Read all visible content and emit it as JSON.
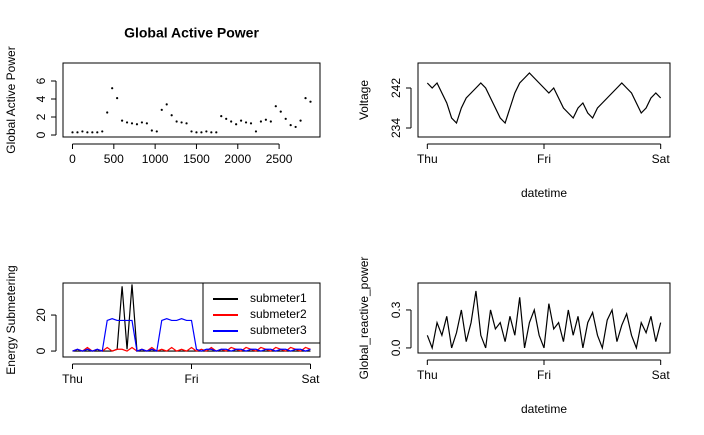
{
  "chart_data": [
    {
      "type": "scatter",
      "title": "Global Active Power",
      "y_label": "Global Active Power",
      "color": "#000000",
      "x": [
        0,
        60,
        120,
        180,
        240,
        300,
        360,
        420,
        480,
        540,
        600,
        660,
        720,
        780,
        840,
        900,
        960,
        1020,
        1080,
        1140,
        1200,
        1260,
        1320,
        1380,
        1440,
        1500,
        1560,
        1620,
        1680,
        1740,
        1800,
        1860,
        1920,
        1980,
        2040,
        2100,
        2160,
        2220,
        2280,
        2340,
        2400,
        2460,
        2520,
        2580,
        2640,
        2700,
        2760,
        2820,
        2880
      ],
      "values": [
        0.3,
        0.3,
        0.4,
        0.3,
        0.3,
        0.3,
        0.4,
        2.5,
        5.2,
        4.1,
        1.6,
        1.4,
        1.3,
        1.2,
        1.4,
        1.3,
        0.5,
        0.4,
        2.8,
        3.4,
        2.2,
        1.5,
        1.4,
        1.3,
        0.4,
        0.3,
        0.3,
        0.4,
        0.3,
        0.3,
        2.1,
        1.8,
        1.5,
        1.2,
        1.6,
        1.4,
        1.3,
        0.4,
        1.5,
        1.7,
        1.5,
        3.2,
        2.6,
        1.8,
        1.1,
        0.9,
        1.6,
        4.1,
        3.7
      ],
      "xlim": [
        -115,
        2995
      ],
      "xticks": [
        0,
        500,
        1000,
        1500,
        2000,
        2500
      ],
      "ylim": [
        -0.22,
        8
      ],
      "yticks": [
        0,
        2,
        4,
        6
      ]
    },
    {
      "type": "line",
      "x_label": "datetime",
      "y_label": "Voltage",
      "color": "#000000",
      "x": [
        0,
        60,
        120,
        180,
        240,
        300,
        360,
        420,
        480,
        540,
        600,
        660,
        720,
        780,
        840,
        900,
        960,
        1020,
        1080,
        1140,
        1200,
        1260,
        1320,
        1380,
        1440,
        1500,
        1560,
        1620,
        1680,
        1740,
        1800,
        1860,
        1920,
        1980,
        2040,
        2100,
        2160,
        2220,
        2280,
        2340,
        2400,
        2460,
        2520,
        2580,
        2640,
        2700,
        2760,
        2820,
        2880
      ],
      "values": [
        243,
        242,
        243,
        241,
        239,
        236,
        235,
        238,
        240,
        241,
        242,
        243,
        242,
        240,
        238,
        236,
        235,
        238,
        241,
        243,
        244,
        245,
        244,
        243,
        242,
        241,
        242,
        240,
        238,
        237,
        236,
        238,
        239,
        237,
        236,
        238,
        239,
        240,
        241,
        242,
        243,
        242,
        241,
        239,
        237,
        238,
        240,
        241,
        240
      ],
      "xlim": [
        -115,
        2995
      ],
      "xticks": [
        {
          "value": 0,
          "label": "Thu"
        },
        {
          "value": 1440,
          "label": "Fri"
        },
        {
          "value": 2880,
          "label": "Sat"
        }
      ],
      "ylim": [
        232.2,
        247
      ],
      "yticks": [
        234,
        242
      ]
    },
    {
      "type": "line",
      "y_label": "Energy Submetering",
      "legend": "top-right",
      "x": [
        0,
        60,
        120,
        180,
        240,
        300,
        360,
        420,
        480,
        540,
        600,
        660,
        720,
        780,
        840,
        900,
        960,
        1020,
        1080,
        1140,
        1200,
        1260,
        1320,
        1380,
        1440,
        1500,
        1560,
        1620,
        1680,
        1740,
        1800,
        1860,
        1920,
        1980,
        2040,
        2100,
        2160,
        2220,
        2280,
        2340,
        2400,
        2460,
        2520,
        2580,
        2640,
        2700,
        2760,
        2820,
        2880
      ],
      "series": [
        {
          "name": "submeter1",
          "color": "#000000",
          "values": [
            0,
            0,
            0,
            0,
            0,
            0,
            0,
            0,
            0,
            1,
            36,
            1,
            37,
            0,
            0,
            0,
            0,
            0,
            0,
            0,
            0,
            0,
            0,
            0,
            0,
            0,
            0,
            0,
            0,
            0,
            0,
            0,
            0,
            0,
            0,
            0,
            0,
            0,
            0,
            0,
            0,
            0,
            0,
            0,
            0,
            0,
            0,
            0,
            0
          ]
        },
        {
          "name": "submeter2",
          "color": "#ff0000",
          "values": [
            0,
            1,
            0,
            2,
            0,
            1,
            0,
            2,
            0,
            1,
            1,
            0,
            2,
            0,
            1,
            0,
            2,
            0,
            1,
            0,
            2,
            0,
            1,
            0,
            2,
            0,
            1,
            0,
            2,
            0,
            1,
            0,
            2,
            1,
            0,
            2,
            1,
            0,
            2,
            1,
            0,
            2,
            1,
            0,
            2,
            1,
            0,
            2,
            1
          ]
        },
        {
          "name": "submeter3",
          "color": "#0000ff",
          "values": [
            0,
            1,
            0,
            1,
            0,
            1,
            0,
            17,
            18,
            17,
            17,
            17,
            17,
            0,
            1,
            0,
            1,
            0,
            17,
            18,
            17,
            17,
            18,
            17,
            17,
            1,
            0,
            1,
            1,
            0,
            1,
            1,
            0,
            1,
            1,
            0,
            1,
            1,
            0,
            1,
            1,
            0,
            1,
            1,
            0,
            1,
            1,
            0,
            1
          ]
        }
      ],
      "xlim": [
        -115,
        2995
      ],
      "xticks": [
        {
          "value": 0,
          "label": "Thu"
        },
        {
          "value": 1440,
          "label": "Fri"
        },
        {
          "value": 2880,
          "label": "Sat"
        }
      ],
      "ylim": [
        -3.3,
        37.8
      ],
      "yticks": [
        0,
        20
      ]
    },
    {
      "type": "line",
      "x_label": "datetime",
      "y_label": "Global_reactive_power",
      "color": "#000000",
      "x": [
        0,
        60,
        120,
        180,
        240,
        300,
        360,
        420,
        480,
        540,
        600,
        660,
        720,
        780,
        840,
        900,
        960,
        1020,
        1080,
        1140,
        1200,
        1260,
        1320,
        1380,
        1440,
        1500,
        1560,
        1620,
        1680,
        1740,
        1800,
        1860,
        1920,
        1980,
        2040,
        2100,
        2160,
        2220,
        2280,
        2340,
        2400,
        2460,
        2520,
        2580,
        2640,
        2700,
        2760,
        2820,
        2880
      ],
      "values": [
        0.1,
        0.0,
        0.2,
        0.1,
        0.25,
        0.0,
        0.12,
        0.3,
        0.05,
        0.2,
        0.45,
        0.1,
        0.0,
        0.3,
        0.15,
        0.2,
        0.05,
        0.25,
        0.1,
        0.4,
        0.0,
        0.2,
        0.3,
        0.1,
        0.0,
        0.35,
        0.15,
        0.2,
        0.05,
        0.3,
        0.1,
        0.25,
        0.0,
        0.2,
        0.28,
        0.1,
        0.0,
        0.22,
        0.3,
        0.05,
        0.18,
        0.27,
        0.1,
        0.0,
        0.2,
        0.12,
        0.25,
        0.05,
        0.2
      ],
      "xlim": [
        -115,
        2995
      ],
      "xticks": [
        {
          "value": 0,
          "label": "Thu"
        },
        {
          "value": 1440,
          "label": "Fri"
        },
        {
          "value": 2880,
          "label": "Sat"
        }
      ],
      "ylim": [
        -0.04,
        0.513
      ],
      "yticks": [
        {
          "value": 0,
          "label": "0.0"
        },
        {
          "value": 0.3,
          "label": "0.3"
        }
      ]
    }
  ]
}
